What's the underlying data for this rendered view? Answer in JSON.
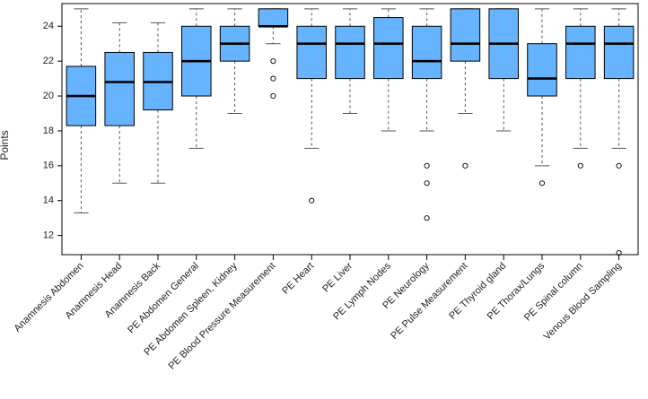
{
  "chart_data": {
    "type": "boxplot",
    "title": "",
    "xlabel": "",
    "ylabel": "Points",
    "ylim": [
      10.9,
      25.3
    ],
    "yticks": [
      12,
      14,
      16,
      18,
      20,
      22,
      24
    ],
    "grid": false,
    "legend": "none",
    "colors": {
      "box_fill": "#66b3ff",
      "stroke": "#000000",
      "whisker": "#555555"
    },
    "categories": [
      "Anamnesis Abdomen",
      "Anamnesis Head",
      "Anamnesis Back",
      "PE Abdomen General",
      "PE Abdomen Spleen, Kidney",
      "PE Blood Pressure Measurement",
      "PE Heart",
      "PE Liver",
      "PE Lymph Nodes",
      "PE Neurology",
      "PE Pulse Measurement",
      "PE Thyroid gland",
      "PE Thorax/Lungs",
      "PE Spinal column",
      "Venous Blood Sampling"
    ],
    "boxes": [
      {
        "min": 13.3,
        "q1": 18.3,
        "median": 20.0,
        "q3": 21.7,
        "max": 25.0,
        "outliers": []
      },
      {
        "min": 15.0,
        "q1": 18.3,
        "median": 20.8,
        "q3": 22.5,
        "max": 24.2,
        "outliers": []
      },
      {
        "min": 15.0,
        "q1": 19.2,
        "median": 20.8,
        "q3": 22.5,
        "max": 24.2,
        "outliers": []
      },
      {
        "min": 17.0,
        "q1": 20.0,
        "median": 22.0,
        "q3": 24.0,
        "max": 25.0,
        "outliers": []
      },
      {
        "min": 19.0,
        "q1": 22.0,
        "median": 23.0,
        "q3": 24.0,
        "max": 25.0,
        "outliers": []
      },
      {
        "min": 23.0,
        "q1": 24.0,
        "median": 24.0,
        "q3": 25.0,
        "max": 25.0,
        "outliers": [
          22,
          21,
          20
        ]
      },
      {
        "min": 17.0,
        "q1": 21.0,
        "median": 23.0,
        "q3": 24.0,
        "max": 25.0,
        "outliers": [
          14
        ]
      },
      {
        "min": 19.0,
        "q1": 21.0,
        "median": 23.0,
        "q3": 24.0,
        "max": 25.0,
        "outliers": []
      },
      {
        "min": 18.0,
        "q1": 21.0,
        "median": 23.0,
        "q3": 24.5,
        "max": 25.0,
        "outliers": []
      },
      {
        "min": 18.0,
        "q1": 21.0,
        "median": 22.0,
        "q3": 24.0,
        "max": 25.0,
        "outliers": [
          16,
          15,
          13
        ]
      },
      {
        "min": 19.0,
        "q1": 22.0,
        "median": 23.0,
        "q3": 25.0,
        "max": 25.0,
        "outliers": [
          16
        ]
      },
      {
        "min": 18.0,
        "q1": 21.0,
        "median": 23.0,
        "q3": 25.0,
        "max": 25.0,
        "outliers": []
      },
      {
        "min": 16.0,
        "q1": 20.0,
        "median": 21.0,
        "q3": 23.0,
        "max": 25.0,
        "outliers": [
          15
        ]
      },
      {
        "min": 17.0,
        "q1": 21.0,
        "median": 23.0,
        "q3": 24.0,
        "max": 25.0,
        "outliers": [
          16
        ]
      },
      {
        "min": 17.0,
        "q1": 21.0,
        "median": 23.0,
        "q3": 24.0,
        "max": 25.0,
        "outliers": [
          16,
          11
        ]
      }
    ]
  }
}
